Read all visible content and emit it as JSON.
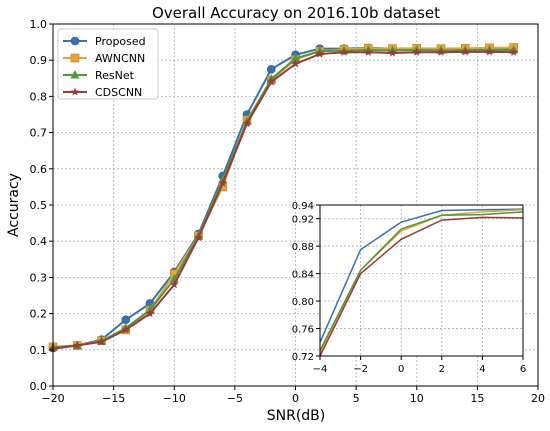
{
  "chart_data": [
    {
      "type": "line",
      "title": "Overall Accuracy on 2016.10b dataset",
      "xlabel": "SNR(dB)",
      "ylabel": "Accuracy",
      "xlim": [
        -20,
        20
      ],
      "ylim": [
        0.0,
        1.0
      ],
      "xticks": [
        -20,
        -15,
        -10,
        -5,
        0,
        5,
        10,
        15,
        20
      ],
      "yticks": [
        0.0,
        0.1,
        0.2,
        0.3,
        0.4,
        0.5,
        0.6,
        0.7,
        0.8,
        0.9,
        1.0
      ],
      "grid": true,
      "legend_position": "top-left",
      "x": [
        -20,
        -18,
        -16,
        -14,
        -12,
        -10,
        -8,
        -6,
        -4,
        -2,
        0,
        2,
        4,
        6,
        8,
        10,
        12,
        14,
        16,
        18
      ],
      "series": [
        {
          "name": "Proposed",
          "color": "#3a6fb0",
          "marker": "circle",
          "values": [
            0.105,
            0.112,
            0.128,
            0.183,
            0.228,
            0.315,
            0.42,
            0.58,
            0.75,
            0.875,
            0.915,
            0.932,
            0.932,
            0.934,
            0.932,
            0.932,
            0.93,
            0.93,
            0.93,
            0.93
          ]
        },
        {
          "name": "AWNCNN",
          "color": "#e6a23c",
          "marker": "square",
          "values": [
            0.108,
            0.112,
            0.125,
            0.155,
            0.21,
            0.31,
            0.415,
            0.55,
            0.735,
            0.845,
            0.902,
            0.925,
            0.93,
            0.933,
            0.932,
            0.933,
            0.932,
            0.933,
            0.934,
            0.935
          ]
        },
        {
          "name": "ResNet",
          "color": "#4c9a3c",
          "marker": "triangle",
          "values": [
            0.107,
            0.112,
            0.124,
            0.16,
            0.21,
            0.295,
            0.415,
            0.57,
            0.73,
            0.848,
            0.905,
            0.925,
            0.926,
            0.928,
            0.927,
            0.928,
            0.927,
            0.927,
            0.928,
            0.928
          ]
        },
        {
          "name": "CDSCNN",
          "color": "#9a3a3a",
          "marker": "star",
          "values": [
            0.103,
            0.112,
            0.122,
            0.155,
            0.2,
            0.28,
            0.41,
            0.56,
            0.725,
            0.84,
            0.89,
            0.917,
            0.922,
            0.922,
            0.92,
            0.922,
            0.922,
            0.923,
            0.923,
            0.922
          ]
        }
      ]
    },
    {
      "type": "line",
      "title": "",
      "xlim": [
        -4,
        6
      ],
      "ylim": [
        0.72,
        0.94
      ],
      "xticks": [
        -4,
        -2,
        0,
        2,
        4,
        6
      ],
      "yticks": [
        0.72,
        0.76,
        0.8,
        0.84,
        0.88,
        0.92,
        0.94
      ],
      "grid": true,
      "x": [
        -4,
        -2,
        0,
        2,
        4,
        6
      ],
      "series": [
        {
          "name": "Proposed",
          "color": "#3a6fb0",
          "marker": "none",
          "values": [
            0.74,
            0.875,
            0.915,
            0.932,
            0.933,
            0.934
          ]
        },
        {
          "name": "AWNCNN",
          "color": "#e6a23c",
          "marker": "none",
          "values": [
            0.725,
            0.845,
            0.902,
            0.925,
            0.93,
            0.933
          ]
        },
        {
          "name": "ResNet",
          "color": "#4c9a3c",
          "marker": "none",
          "values": [
            0.728,
            0.845,
            0.905,
            0.925,
            0.926,
            0.93
          ]
        },
        {
          "name": "CDSCNN",
          "color": "#9a3a3a",
          "marker": "none",
          "values": [
            0.72,
            0.84,
            0.89,
            0.918,
            0.922,
            0.921
          ]
        }
      ]
    }
  ]
}
